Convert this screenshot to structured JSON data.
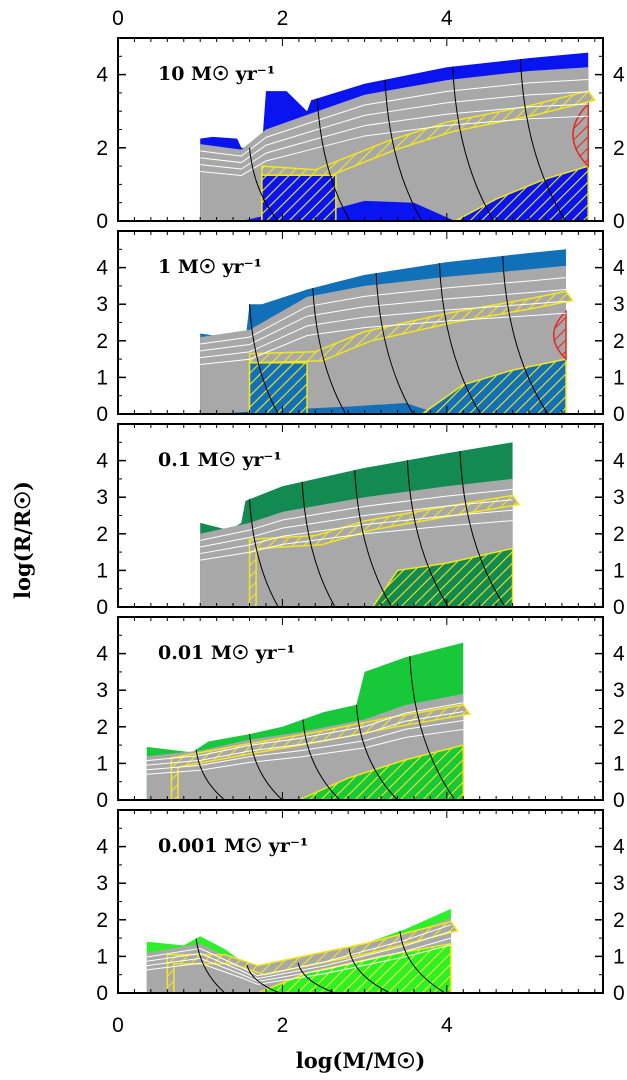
{
  "chart_data": {
    "type": "area",
    "xlabel": "log(M/M☉)",
    "ylabel": "log(R/R☉)",
    "x_ticks": [
      0,
      2,
      4
    ],
    "xlim": [
      0,
      5.9
    ],
    "grid": false,
    "colors": {
      "gray_region": "#a8a8a8",
      "hatch_yellow": "#f2e61c",
      "hatch_red": "#e4281f",
      "contour_black": "#000000",
      "contour_white": "#ffffff"
    },
    "panels": [
      {
        "label": "10 M☉ yr⁻¹",
        "color": "#0a14f0",
        "ylim": [
          0,
          5
        ],
        "y_ticks": [
          0,
          2,
          4
        ],
        "xmax": 5.72,
        "outer_top": [
          [
            1.0,
            2.25
          ],
          [
            1.15,
            2.3
          ],
          [
            1.45,
            2.25
          ],
          [
            1.5,
            2.0
          ],
          [
            1.75,
            2.0
          ],
          [
            1.8,
            3.55
          ],
          [
            2.05,
            3.55
          ],
          [
            2.3,
            3.0
          ],
          [
            2.35,
            3.3
          ],
          [
            3.0,
            3.75
          ],
          [
            4.0,
            4.2
          ],
          [
            5.0,
            4.45
          ],
          [
            5.72,
            4.6
          ]
        ],
        "gray_top": [
          [
            1.0,
            2.1
          ],
          [
            1.5,
            1.95
          ],
          [
            1.8,
            2.5
          ],
          [
            2.3,
            2.9
          ],
          [
            3.0,
            3.45
          ],
          [
            4.0,
            3.85
          ],
          [
            5.0,
            4.1
          ],
          [
            5.72,
            4.2
          ]
        ],
        "hatch_band": [
          [
            1.75,
            1.25
          ],
          [
            2.4,
            1.15
          ],
          [
            3.3,
            1.95
          ],
          [
            4.0,
            2.45
          ],
          [
            5.0,
            2.9
          ],
          [
            5.72,
            3.3
          ]
        ],
        "hatch_core_top": [
          [
            4.1,
            0
          ],
          [
            4.6,
            0.6
          ],
          [
            5.2,
            1.15
          ],
          [
            5.72,
            1.5
          ]
        ],
        "red_region": {
          "x": 5.4,
          "ymin": 1.5,
          "ymax": 3.2
        }
      },
      {
        "label": "1 M☉ yr⁻¹",
        "color": "#1270b8",
        "ylim": [
          0,
          5
        ],
        "y_ticks": [
          0,
          1,
          2,
          3,
          4
        ],
        "xmax": 5.45,
        "outer_top": [
          [
            1.0,
            2.2
          ],
          [
            1.3,
            2.1
          ],
          [
            1.55,
            2.0
          ],
          [
            1.6,
            3.0
          ],
          [
            1.75,
            3.0
          ],
          [
            2.3,
            3.4
          ],
          [
            3.0,
            3.8
          ],
          [
            4.0,
            4.15
          ],
          [
            5.0,
            4.4
          ],
          [
            5.45,
            4.5
          ]
        ],
        "gray_top": [
          [
            1.0,
            2.1
          ],
          [
            1.6,
            2.3
          ],
          [
            2.3,
            3.2
          ],
          [
            3.0,
            3.5
          ],
          [
            4.0,
            3.75
          ],
          [
            5.0,
            3.95
          ],
          [
            5.45,
            4.05
          ]
        ],
        "hatch_band": [
          [
            1.6,
            1.4
          ],
          [
            2.4,
            1.45
          ],
          [
            3.0,
            2.0
          ],
          [
            4.0,
            2.5
          ],
          [
            5.0,
            2.9
          ],
          [
            5.45,
            3.1
          ]
        ],
        "hatch_core_top": [
          [
            3.7,
            0
          ],
          [
            4.2,
            0.8
          ],
          [
            4.8,
            1.2
          ],
          [
            5.45,
            1.5
          ]
        ],
        "red_region": {
          "x": 5.2,
          "ymin": 1.5,
          "ymax": 2.8
        }
      },
      {
        "label": "0.1 M☉ yr⁻¹",
        "color": "#128a52",
        "ylim": [
          0,
          5
        ],
        "y_ticks": [
          0,
          1,
          2,
          3,
          4
        ],
        "xmax": 4.8,
        "outer_top": [
          [
            1.0,
            2.3
          ],
          [
            1.35,
            2.1
          ],
          [
            1.5,
            2.3
          ],
          [
            1.55,
            2.9
          ],
          [
            2.0,
            3.3
          ],
          [
            3.0,
            3.8
          ],
          [
            4.0,
            4.2
          ],
          [
            4.8,
            4.5
          ]
        ],
        "gray_top": [
          [
            1.0,
            2.0
          ],
          [
            1.6,
            2.3
          ],
          [
            2.0,
            2.6
          ],
          [
            3.0,
            3.0
          ],
          [
            4.0,
            3.3
          ],
          [
            4.8,
            3.5
          ]
        ],
        "hatch_band": [
          [
            1.6,
            1.6
          ],
          [
            2.4,
            1.7
          ],
          [
            3.0,
            2.1
          ],
          [
            4.0,
            2.5
          ],
          [
            4.8,
            2.8
          ]
        ],
        "hatch_core_top": [
          [
            3.1,
            0
          ],
          [
            3.4,
            1.0
          ],
          [
            4.0,
            1.2
          ],
          [
            4.8,
            1.6
          ]
        ],
        "red_region": null
      },
      {
        "label": "0.01 M☉ yr⁻¹",
        "color": "#16c83a",
        "ylim": [
          0,
          5
        ],
        "y_ticks": [
          0,
          1,
          2,
          3,
          4
        ],
        "xmax": 4.2,
        "outer_top": [
          [
            0.35,
            1.45
          ],
          [
            0.9,
            1.3
          ],
          [
            1.1,
            1.6
          ],
          [
            1.6,
            1.8
          ],
          [
            2.0,
            2.0
          ],
          [
            2.5,
            2.4
          ],
          [
            2.9,
            2.6
          ],
          [
            3.0,
            3.5
          ],
          [
            3.5,
            3.9
          ],
          [
            4.2,
            4.3
          ]
        ],
        "gray_top": [
          [
            0.35,
            1.2
          ],
          [
            1.0,
            1.35
          ],
          [
            1.6,
            1.65
          ],
          [
            2.2,
            1.85
          ],
          [
            3.0,
            2.2
          ],
          [
            3.5,
            2.6
          ],
          [
            4.2,
            2.9
          ]
        ],
        "hatch_band": [
          [
            0.65,
            0.9
          ],
          [
            1.5,
            1.25
          ],
          [
            2.4,
            1.6
          ],
          [
            3.3,
            2.0
          ],
          [
            4.2,
            2.35
          ]
        ],
        "hatch_core_top": [
          [
            2.2,
            0
          ],
          [
            2.8,
            0.6
          ],
          [
            3.5,
            1.1
          ],
          [
            4.2,
            1.5
          ]
        ],
        "red_region": null
      },
      {
        "label": "0.001 M☉ yr⁻¹",
        "color": "#2df02a",
        "ylim": [
          0,
          5
        ],
        "y_ticks": [
          0,
          1,
          2,
          3,
          4
        ],
        "xmax": 4.05,
        "outer_top": [
          [
            0.35,
            1.4
          ],
          [
            0.8,
            1.3
          ],
          [
            1.0,
            1.55
          ],
          [
            1.3,
            1.2
          ],
          [
            1.7,
            0.55
          ],
          [
            2.5,
            1.0
          ],
          [
            3.0,
            1.35
          ],
          [
            3.5,
            1.75
          ],
          [
            4.05,
            2.3
          ]
        ],
        "gray_top": [
          [
            0.35,
            1.1
          ],
          [
            1.0,
            1.35
          ],
          [
            1.5,
            0.8
          ],
          [
            1.7,
            0.55
          ],
          [
            2.5,
            0.95
          ],
          [
            3.5,
            1.6
          ],
          [
            4.05,
            2.05
          ]
        ],
        "hatch_band": [
          [
            0.6,
            0.8
          ],
          [
            1.3,
            0.8
          ],
          [
            1.7,
            0.5
          ],
          [
            3.0,
            1.1
          ],
          [
            4.05,
            1.7
          ]
        ],
        "hatch_core_top": [
          [
            1.7,
            0
          ],
          [
            2.3,
            0.55
          ],
          [
            3.2,
            1.0
          ],
          [
            4.05,
            1.35
          ]
        ],
        "red_region": null
      }
    ]
  }
}
